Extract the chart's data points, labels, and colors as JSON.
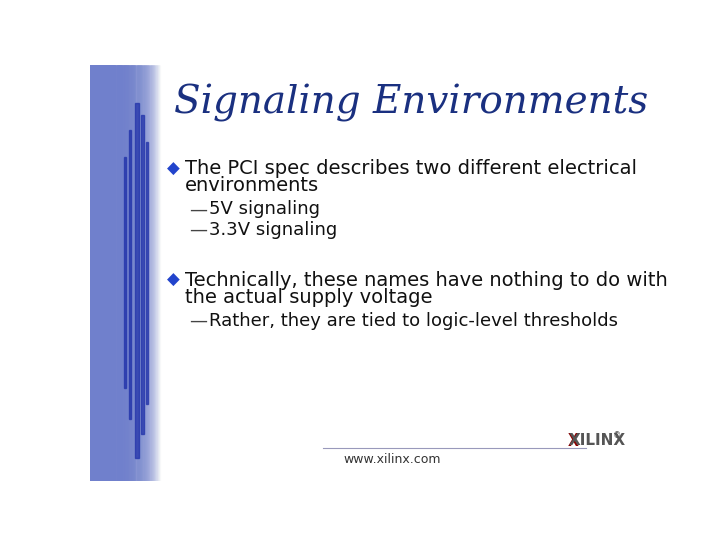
{
  "title": "Signaling Environments",
  "title_color": "#1a3080",
  "title_fontsize": 28,
  "title_font": "serif",
  "bg_color": "#ffffff",
  "left_bg_color": "#7080cc",
  "left_dark_bar": "#2233aa",
  "bullet_color": "#2244cc",
  "dash_color": "#444444",
  "text_color": "#111111",
  "bullet_char": "◆",
  "dash_char": "—",
  "bullet1_line1": "The PCI spec describes two different electrical",
  "bullet1_line2": "environments",
  "sub1_1": "5V signaling",
  "sub1_2": "3.3V signaling",
  "bullet2_line1": "Technically, these names have nothing to do with",
  "bullet2_line2": "the actual supply voltage",
  "sub2_1": "Rather, they are tied to logic-level thresholds",
  "footer_text": "www.xilinx.com",
  "footer_color": "#333333",
  "footer_fontsize": 9,
  "line_color": "#9999bb",
  "bullet_fs": 14,
  "sub_fs": 13
}
